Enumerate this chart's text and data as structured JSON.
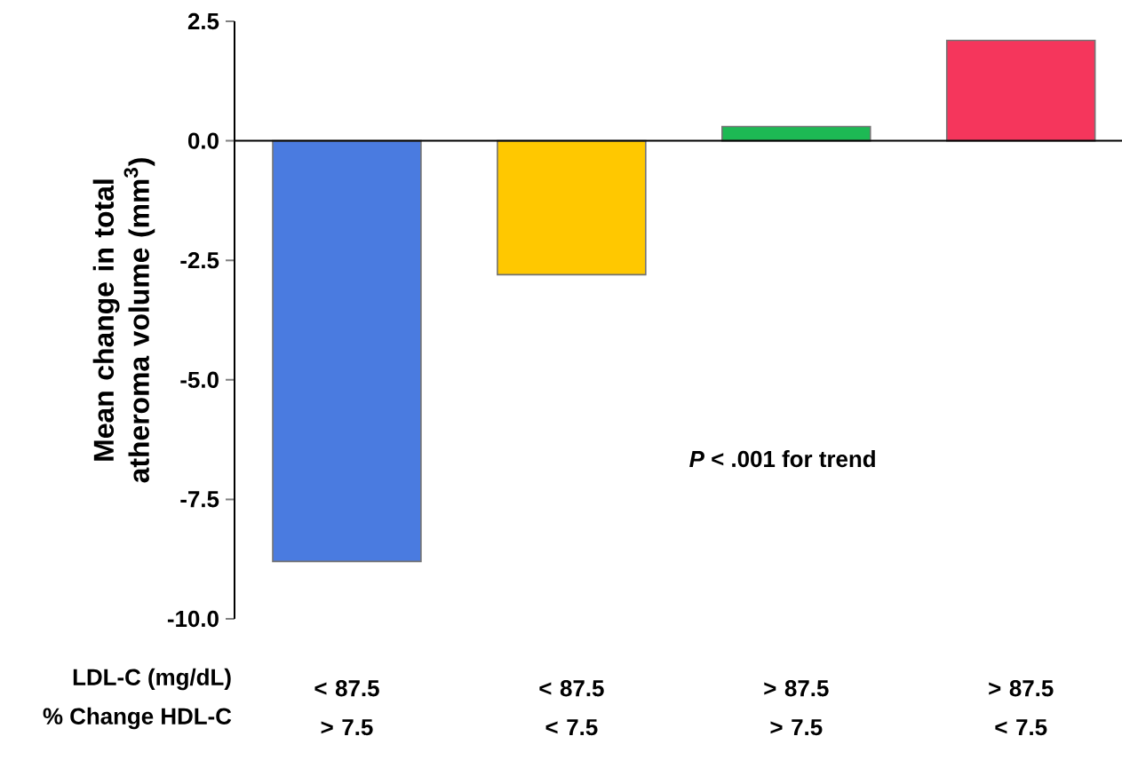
{
  "chart_data": {
    "type": "bar",
    "ylabel": "Mean change in total atheroma volume (mm$^{3}$)",
    "categories": [
      "< 87.5 > 7.5",
      "< 87.5 < 7.5",
      "> 87.5 > 7.5",
      "> 87.5 < 7.5"
    ],
    "values": [
      -8.8,
      -2.8,
      0.3,
      2.1
    ],
    "colors": [
      "#4a7be0",
      "#ffc800",
      "#1db954",
      "#f5365c"
    ],
    "ylim": [
      -10,
      2.5
    ],
    "yticks": [
      {
        "value": -10,
        "label": "-10.0"
      },
      {
        "value": -7.5,
        "label": "-7.5"
      },
      {
        "value": -5,
        "label": "-5.0"
      },
      {
        "value": -2.5,
        "label": "-2.5"
      },
      {
        "value": 0,
        "label": "0.0"
      },
      {
        "value": 2.5,
        "label": "2.5"
      }
    ],
    "annotations": [
      "LDL-C (mg/dL)",
      "% Change HDL-C",
      "*P* < .001 for trend"
    ],
    "line_style": "solid"
  }
}
